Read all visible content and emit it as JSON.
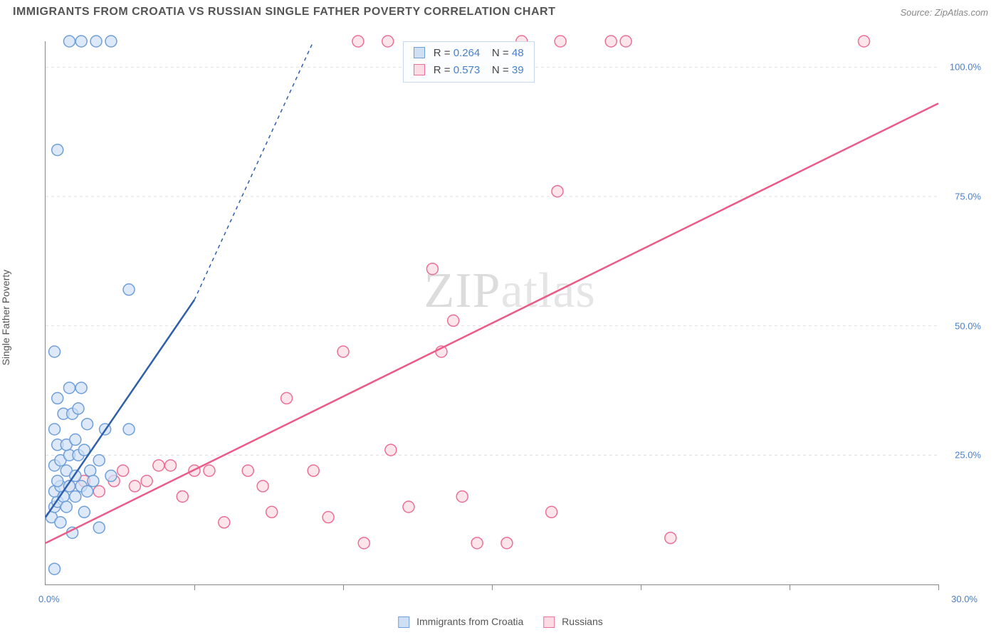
{
  "title": "IMMIGRANTS FROM CROATIA VS RUSSIAN SINGLE FATHER POVERTY CORRELATION CHART",
  "source": "Source: ZipAtlas.com",
  "ylabel": "Single Father Poverty",
  "watermark_a": "ZIP",
  "watermark_b": "atlas",
  "chart": {
    "type": "scatter",
    "background_color": "#ffffff",
    "grid_color": "#dddddd",
    "axis_color": "#888888",
    "tick_label_color": "#4a7fc9",
    "xlim": [
      0,
      30
    ],
    "ylim": [
      0,
      105
    ],
    "ytick_values": [
      25,
      50,
      75,
      100
    ],
    "ytick_labels": [
      "25.0%",
      "50.0%",
      "75.0%",
      "100.0%"
    ],
    "xtick_values": [
      5,
      10,
      15,
      20,
      25,
      30
    ],
    "xlabel_min": "0.0%",
    "xlabel_max": "30.0%",
    "marker_radius": 8,
    "marker_stroke_width": 1.5,
    "trend_line_width": 2.5,
    "series": [
      {
        "id": "croatia",
        "label": "Immigrants from Croatia",
        "fill": "#cfe0f5",
        "stroke": "#6f9fd8",
        "line_color": "#2f5fa8",
        "R": "0.264",
        "N": "48",
        "trend": {
          "x1": 0,
          "y1": 13,
          "x2": 5,
          "y2": 55,
          "dash_x2": 9,
          "dash_y2": 105
        },
        "points": [
          [
            0.3,
            3
          ],
          [
            0.2,
            13
          ],
          [
            0.3,
            15
          ],
          [
            0.4,
            16
          ],
          [
            0.3,
            18
          ],
          [
            0.6,
            17
          ],
          [
            0.5,
            19
          ],
          [
            0.8,
            19
          ],
          [
            0.4,
            20
          ],
          [
            0.7,
            22
          ],
          [
            1.0,
            21
          ],
          [
            1.2,
            19
          ],
          [
            0.3,
            23
          ],
          [
            0.5,
            24
          ],
          [
            0.8,
            25
          ],
          [
            1.1,
            25
          ],
          [
            1.5,
            22
          ],
          [
            0.4,
            27
          ],
          [
            0.7,
            27
          ],
          [
            1.0,
            28
          ],
          [
            1.3,
            26
          ],
          [
            1.8,
            24
          ],
          [
            0.3,
            30
          ],
          [
            0.6,
            33
          ],
          [
            0.9,
            33
          ],
          [
            1.1,
            34
          ],
          [
            1.4,
            31
          ],
          [
            2.0,
            30
          ],
          [
            2.8,
            30
          ],
          [
            0.4,
            36
          ],
          [
            0.8,
            38
          ],
          [
            1.2,
            38
          ],
          [
            0.3,
            45
          ],
          [
            2.8,
            57
          ],
          [
            0.4,
            84
          ],
          [
            0.8,
            105
          ],
          [
            1.2,
            105
          ],
          [
            1.7,
            105
          ],
          [
            2.2,
            105
          ],
          [
            1.6,
            20
          ],
          [
            1.4,
            18
          ],
          [
            2.2,
            21
          ],
          [
            1.0,
            17
          ],
          [
            0.7,
            15
          ],
          [
            1.8,
            11
          ],
          [
            1.3,
            14
          ],
          [
            0.5,
            12
          ],
          [
            0.9,
            10
          ]
        ]
      },
      {
        "id": "russians",
        "label": "Russians",
        "fill": "#fbdbe4",
        "stroke": "#ec6f96",
        "line_color": "#ec5a88",
        "R": "0.573",
        "N": "39",
        "trend": {
          "x1": 0,
          "y1": 8,
          "x2": 30,
          "y2": 93
        },
        "points": [
          [
            0.8,
            19
          ],
          [
            1.3,
            20
          ],
          [
            1.8,
            18
          ],
          [
            2.3,
            20
          ],
          [
            2.6,
            22
          ],
          [
            3.0,
            19
          ],
          [
            3.4,
            20
          ],
          [
            3.8,
            23
          ],
          [
            4.2,
            23
          ],
          [
            4.6,
            17
          ],
          [
            5.0,
            22
          ],
          [
            5.5,
            22
          ],
          [
            6.0,
            12
          ],
          [
            6.8,
            22
          ],
          [
            7.3,
            19
          ],
          [
            7.6,
            14
          ],
          [
            8.1,
            36
          ],
          [
            9.0,
            22
          ],
          [
            9.5,
            13
          ],
          [
            10.0,
            45
          ],
          [
            10.7,
            8
          ],
          [
            10.5,
            105
          ],
          [
            11.5,
            105
          ],
          [
            11.6,
            26
          ],
          [
            12.2,
            15
          ],
          [
            13.0,
            61
          ],
          [
            13.3,
            45
          ],
          [
            13.7,
            51
          ],
          [
            14.0,
            17
          ],
          [
            14.5,
            8
          ],
          [
            15.5,
            8
          ],
          [
            16.0,
            105
          ],
          [
            17.0,
            14
          ],
          [
            17.2,
            76
          ],
          [
            17.3,
            105
          ],
          [
            19.0,
            105
          ],
          [
            19.5,
            105
          ],
          [
            21.0,
            9
          ],
          [
            27.5,
            105
          ]
        ]
      }
    ]
  },
  "stats_labels": {
    "R": "R =",
    "N": "N ="
  }
}
